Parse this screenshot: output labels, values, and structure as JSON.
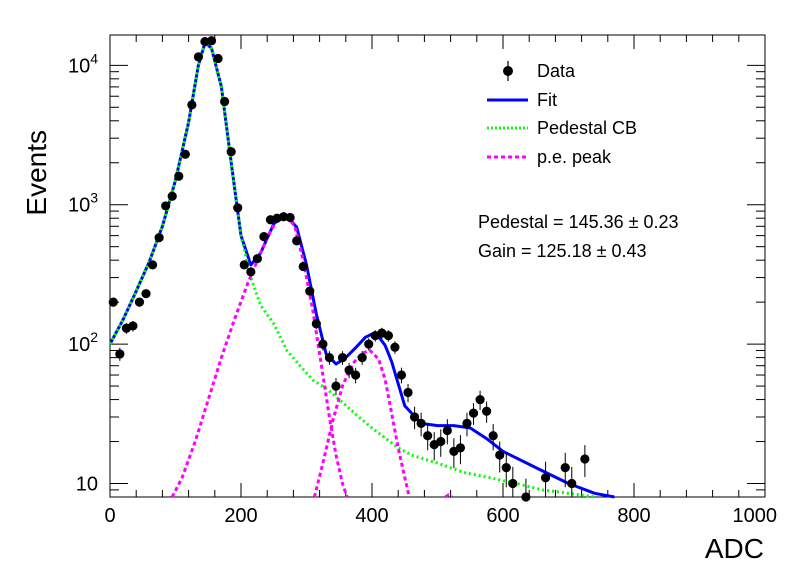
{
  "chart_data": {
    "type": "scatter",
    "xlabel": "ADC",
    "ylabel": "Events",
    "xlim": [
      0,
      1000
    ],
    "ylim": [
      8,
      16500
    ],
    "yscale": "log",
    "grid": false,
    "legend_position": "top-right",
    "x_ticks": [
      {
        "value": 0,
        "label": "0"
      },
      {
        "value": 200,
        "label": "200"
      },
      {
        "value": 400,
        "label": "400"
      },
      {
        "value": 600,
        "label": "600"
      },
      {
        "value": 800,
        "label": "800"
      },
      {
        "value": 1000,
        "label": "1000"
      }
    ],
    "y_ticks": [
      {
        "value": 10,
        "base": "10",
        "exp": ""
      },
      {
        "value": 100,
        "base": "10",
        "exp": "2"
      },
      {
        "value": 1000,
        "base": "10",
        "exp": "3"
      },
      {
        "value": 10000,
        "base": "10",
        "exp": "4"
      }
    ],
    "legend": [
      {
        "label": "Data",
        "style": "marker",
        "color": "#000000"
      },
      {
        "label": "Fit",
        "style": "solid",
        "color": "#0000ff"
      },
      {
        "label": "Pedestal CB",
        "style": "dotted",
        "color": "#00ff00"
      },
      {
        "label": "p.e. peak",
        "style": "dashed",
        "color": "#ff00ff"
      }
    ],
    "annotations": [
      {
        "text": "Pedestal = 145.36 ± 0.23"
      },
      {
        "text": "Gain = 125.18 ± 0.43"
      }
    ],
    "series": [
      {
        "name": "Data",
        "color": "#000000",
        "x": [
          5,
          15,
          25,
          35,
          45,
          55,
          65,
          75,
          85,
          95,
          105,
          115,
          125,
          135,
          145,
          155,
          165,
          175,
          185,
          195,
          205,
          215,
          225,
          235,
          245,
          255,
          265,
          275,
          285,
          295,
          305,
          315,
          325,
          335,
          345,
          355,
          365,
          375,
          385,
          395,
          405,
          415,
          425,
          435,
          445,
          455,
          465,
          475,
          485,
          495,
          505,
          515,
          525,
          535,
          545,
          555,
          565,
          575,
          585,
          595,
          605,
          615,
          635,
          665,
          695,
          705,
          725
        ],
        "y": [
          200,
          85,
          130,
          135,
          200,
          230,
          370,
          580,
          980,
          1150,
          1600,
          2300,
          5200,
          11500,
          14800,
          15000,
          11200,
          5500,
          2400,
          950,
          370,
          330,
          410,
          590,
          780,
          800,
          820,
          810,
          550,
          360,
          240,
          140,
          100,
          80,
          50,
          80,
          65,
          60,
          80,
          100,
          115,
          120,
          115,
          95,
          60,
          45,
          30,
          27,
          22,
          19,
          20,
          24,
          17,
          18,
          27,
          32,
          40,
          33,
          22,
          16,
          13,
          10,
          8,
          11,
          13,
          10,
          15
        ]
      },
      {
        "name": "Fit",
        "color": "#0000ff",
        "x": [
          0,
          20,
          40,
          60,
          80,
          100,
          120,
          135,
          145,
          155,
          170,
          185,
          200,
          215,
          230,
          250,
          268,
          285,
          300,
          315,
          330,
          345,
          360,
          375,
          390,
          400,
          410,
          420,
          430,
          450,
          475,
          500,
          525,
          550,
          575,
          600,
          650,
          700,
          740,
          770
        ],
        "y": [
          100,
          150,
          240,
          390,
          700,
          1500,
          3900,
          10000,
          14500,
          13300,
          7000,
          2000,
          600,
          370,
          450,
          730,
          850,
          690,
          370,
          165,
          85,
          72,
          80,
          94,
          112,
          118,
          113,
          98,
          75,
          36,
          27,
          26,
          26,
          25,
          21,
          17,
          13,
          10,
          8.5,
          8
        ]
      },
      {
        "name": "Pedestal CB",
        "color": "#00ff00",
        "x": [
          0,
          20,
          40,
          60,
          80,
          100,
          120,
          135,
          145,
          155,
          170,
          185,
          200,
          215,
          230,
          250,
          270,
          290,
          310,
          330,
          350,
          380,
          400,
          440,
          460,
          500,
          540,
          580,
          620,
          660,
          700,
          740
        ],
        "y": [
          100,
          150,
          240,
          390,
          700,
          1500,
          3900,
          10000,
          14500,
          13300,
          7000,
          2000,
          600,
          300,
          190,
          140,
          90,
          70,
          55,
          48,
          40,
          30,
          25,
          18,
          16,
          14,
          12,
          11,
          10,
          9,
          8.5,
          8
        ]
      },
      {
        "name": "p.e. peak 1",
        "color": "#ff00ff",
        "x": [
          95,
          110,
          130,
          150,
          170,
          190,
          210,
          230,
          245,
          258,
          270,
          282,
          295,
          310,
          325,
          335,
          345,
          355,
          362
        ],
        "y": [
          8,
          11,
          20,
          40,
          80,
          150,
          270,
          450,
          650,
          810,
          830,
          700,
          400,
          170,
          60,
          30,
          16,
          10,
          8
        ]
      },
      {
        "name": "p.e. peak 2",
        "color": "#ff00ff",
        "x": [
          312,
          325,
          340,
          355,
          370,
          385,
          397,
          410,
          420,
          430,
          440,
          450,
          457
        ],
        "y": [
          8,
          14,
          28,
          50,
          72,
          86,
          90,
          78,
          56,
          32,
          18,
          11,
          8
        ]
      },
      {
        "name": "p.e. peak 3",
        "color": "#ff00ff",
        "x": [
          512,
          517,
          522
        ],
        "y": [
          8,
          8.3,
          8
        ]
      }
    ]
  }
}
